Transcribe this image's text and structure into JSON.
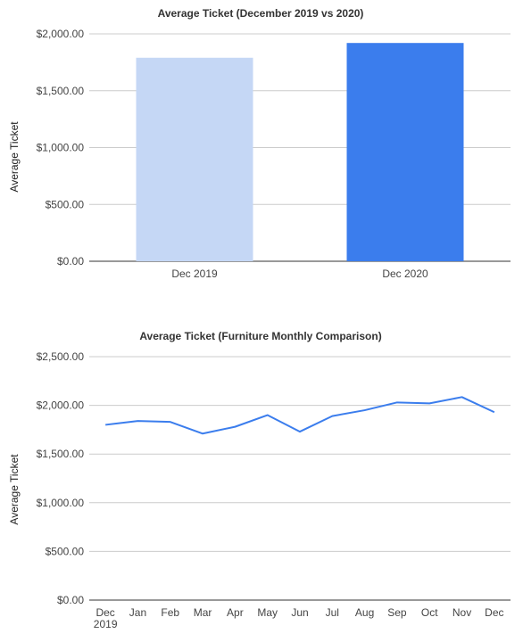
{
  "chart_data": [
    {
      "type": "bar",
      "title": "Average Ticket  (December 2019 vs 2020)",
      "xlabel": "",
      "ylabel": "Average Ticket",
      "categories": [
        "Dec 2019",
        "Dec 2020"
      ],
      "values": [
        1790,
        1920
      ],
      "colors": [
        "#c5d7f5",
        "#3b7ded"
      ],
      "ylim": [
        0,
        2000
      ],
      "yticks": [
        0,
        500,
        1000,
        1500,
        2000
      ],
      "ytick_labels": [
        "$0.00",
        "$500.00",
        "$1,000.00",
        "$1,500.00",
        "$2,000.00"
      ],
      "grid": true,
      "legend": "none"
    },
    {
      "type": "line",
      "title": "Average Ticket (Furniture Monthly Comparison)",
      "xlabel": "",
      "ylabel": "Average Ticket",
      "categories": [
        "Dec 2019",
        "Jan",
        "Feb",
        "Mar",
        "Apr",
        "May",
        "Jun",
        "Jul",
        "Aug",
        "Sep",
        "Oct",
        "Nov",
        "Dec"
      ],
      "category_lines": [
        [
          "Dec",
          "2019"
        ],
        [
          "Jan"
        ],
        [
          "Feb"
        ],
        [
          "Mar"
        ],
        [
          "Apr"
        ],
        [
          "May"
        ],
        [
          "Jun"
        ],
        [
          "Jul"
        ],
        [
          "Aug"
        ],
        [
          "Sep"
        ],
        [
          "Oct"
        ],
        [
          "Nov"
        ],
        [
          "Dec"
        ]
      ],
      "series": [
        {
          "values": [
            1800,
            1840,
            1830,
            1710,
            1780,
            1900,
            1730,
            1890,
            1950,
            2030,
            2020,
            2085,
            1930
          ],
          "color": "#3b7ded"
        }
      ],
      "ylim": [
        0,
        2500
      ],
      "yticks": [
        0,
        500,
        1000,
        1500,
        2000,
        2500
      ],
      "ytick_labels": [
        "$0.00",
        "$500.00",
        "$1,000.00",
        "$1,500.00",
        "$2,000.00",
        "$2,500.00"
      ],
      "grid": true,
      "legend": "none"
    }
  ]
}
